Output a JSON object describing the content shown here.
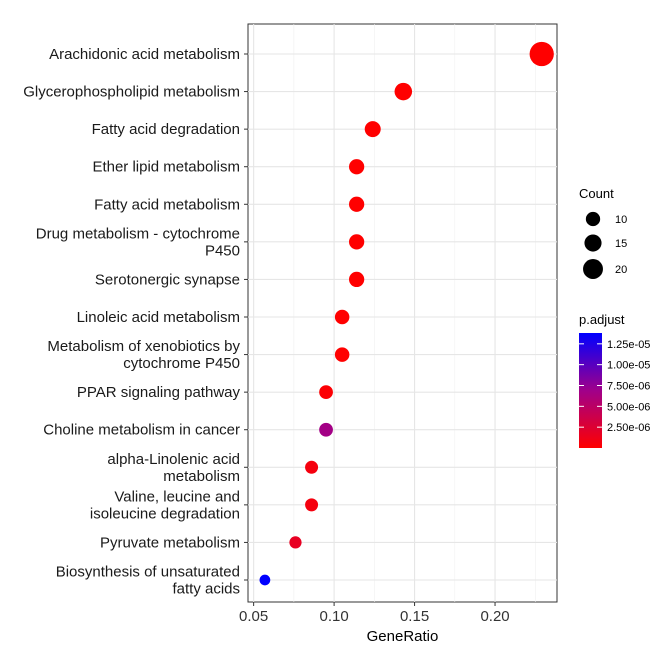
{
  "chart_data": {
    "type": "scatter",
    "xlabel": "GeneRatio",
    "xlim": [
      0.05,
      0.23
    ],
    "xticks": [
      0.05,
      0.1,
      0.15,
      0.2
    ],
    "xtick_labels": [
      "0.05",
      "0.10",
      "0.15",
      "0.20"
    ],
    "grid": true,
    "points": [
      {
        "label": "Arachidonic acid metabolism",
        "x": 0.229,
        "count": 24,
        "padj": 1e-07
      },
      {
        "label": "Glycerophospholipid metabolism",
        "x": 0.143,
        "count": 15,
        "padj": 1e-07
      },
      {
        "label": "Fatty acid degradation",
        "x": 0.124,
        "count": 13,
        "padj": 1e-07
      },
      {
        "label": "Ether lipid metabolism",
        "x": 0.114,
        "count": 12,
        "padj": 1e-07
      },
      {
        "label": "Fatty acid metabolism",
        "x": 0.114,
        "count": 12,
        "padj": 1e-07
      },
      {
        "label": "Drug metabolism - cytochrome P450",
        "x": 0.114,
        "count": 12,
        "padj": 1e-07
      },
      {
        "label": "Serotonergic synapse",
        "x": 0.114,
        "count": 12,
        "padj": 1e-07
      },
      {
        "label": "Linoleic acid metabolism",
        "x": 0.105,
        "count": 11,
        "padj": 1e-07
      },
      {
        "label": "Metabolism of xenobiotics by cytochrome P450",
        "x": 0.105,
        "count": 11,
        "padj": 1e-07
      },
      {
        "label": "PPAR signaling pathway",
        "x": 0.095,
        "count": 10,
        "padj": 3e-07
      },
      {
        "label": "Choline metabolism in cancer",
        "x": 0.095,
        "count": 10,
        "padj": 6.8e-06
      },
      {
        "label": "alpha-Linolenic acid metabolism",
        "x": 0.086,
        "count": 9,
        "padj": 8e-07
      },
      {
        "label": "Valine, leucine and isoleucine degradation",
        "x": 0.086,
        "count": 9,
        "padj": 8e-07
      },
      {
        "label": "Pyruvate metabolism",
        "x": 0.076,
        "count": 8,
        "padj": 1.8e-06
      },
      {
        "label": "Biosynthesis of unsaturated fatty acids",
        "x": 0.057,
        "count": 6,
        "padj": 1.4e-05
      }
    ],
    "labels_display": [
      [
        "Arachidonic acid metabolism"
      ],
      [
        "Glycerophospholipid metabolism"
      ],
      [
        "Fatty acid degradation"
      ],
      [
        "Ether lipid metabolism"
      ],
      [
        "Fatty acid metabolism"
      ],
      [
        "Drug metabolism - cytochrome",
        "P450"
      ],
      [
        "Serotonergic synapse"
      ],
      [
        "Linoleic acid metabolism"
      ],
      [
        "Metabolism of xenobiotics by",
        "cytochrome P450"
      ],
      [
        "PPAR signaling pathway"
      ],
      [
        "Choline metabolism in cancer"
      ],
      [
        "alpha-Linolenic acid",
        "metabolism"
      ],
      [
        "Valine, leucine and",
        "isoleucine degradation"
      ],
      [
        "Pyruvate metabolism"
      ],
      [
        "Biosynthesis of unsaturated",
        "fatty acids"
      ]
    ],
    "size_legend": {
      "title": "Count",
      "entries": [
        {
          "label": "10",
          "value": 10
        },
        {
          "label": "15",
          "value": 15
        },
        {
          "label": "20",
          "value": 20
        }
      ]
    },
    "color_legend": {
      "title": "p.adjust",
      "range": [
        1e-07,
        1.4e-05
      ],
      "low_color": "#ff0000",
      "high_color": "#0000ff",
      "entries": [
        {
          "label": "1.25e-05",
          "value": 1.25e-05
        },
        {
          "label": "1.00e-05",
          "value": 1e-05
        },
        {
          "label": "7.50e-06",
          "value": 7.5e-06
        },
        {
          "label": "5.00e-06",
          "value": 5e-06
        },
        {
          "label": "2.50e-06",
          "value": 2.5e-06
        }
      ]
    }
  }
}
